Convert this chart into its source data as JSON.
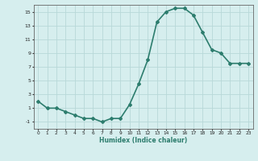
{
  "x": [
    0,
    1,
    2,
    3,
    4,
    5,
    6,
    7,
    8,
    9,
    10,
    11,
    12,
    13,
    14,
    15,
    16,
    17,
    18,
    19,
    20,
    21,
    22,
    23
  ],
  "y": [
    2,
    1,
    1,
    0.5,
    0,
    -0.5,
    -0.5,
    -1,
    -0.5,
    -0.5,
    1.5,
    4.5,
    8,
    13.5,
    15,
    15.5,
    15.5,
    14.5,
    12,
    9.5,
    9,
    7.5,
    7.5,
    7.5
  ],
  "xlabel": "Humidex (Indice chaleur)",
  "ylabel": "",
  "title": "",
  "line_color": "#2d7d6e",
  "bg_color": "#d6eeee",
  "grid_color": "#b8d8d8",
  "ylim": [
    -2,
    16
  ],
  "xlim": [
    -0.5,
    23.5
  ],
  "yticks": [
    -1,
    1,
    3,
    5,
    7,
    9,
    11,
    13,
    15
  ],
  "xticks": [
    0,
    1,
    2,
    3,
    4,
    5,
    6,
    7,
    8,
    9,
    10,
    11,
    12,
    13,
    14,
    15,
    16,
    17,
    18,
    19,
    20,
    21,
    22,
    23
  ],
  "marker": "D",
  "marker_size": 2.0,
  "linewidth": 1.2
}
